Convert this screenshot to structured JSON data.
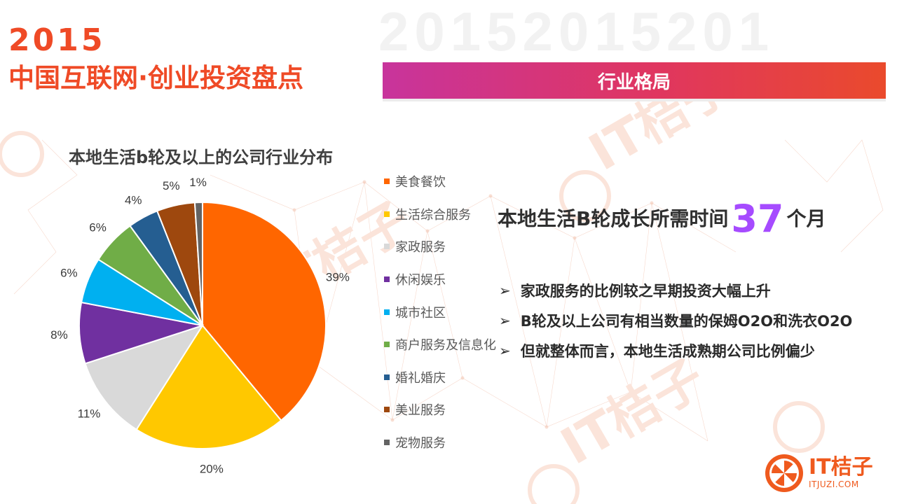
{
  "header": {
    "year": "2015",
    "title": "中国互联网·创业投资盘点",
    "section": "行业格局"
  },
  "chart_data": {
    "type": "pie",
    "title": "本地生活b轮及以上的公司行业分布",
    "categories": [
      "美食餐饮",
      "生活综合服务",
      "家政服务",
      "休闲娱乐",
      "城市社区",
      "商户服务及信息化",
      "婚礼婚庆",
      "美业服务",
      "宠物服务"
    ],
    "values": [
      39,
      20,
      11,
      8,
      6,
      6,
      4,
      5,
      1
    ],
    "labels": [
      "39%",
      "20%",
      "11%",
      "8%",
      "6%",
      "6%",
      "4%",
      "5%",
      "1%"
    ],
    "colors": [
      "#ff6600",
      "#ffc800",
      "#d9d9d9",
      "#7030a0",
      "#00b0f0",
      "#70ad47",
      "#255e91",
      "#9e480e",
      "#636363"
    ],
    "legend_position": "right"
  },
  "headline": {
    "lead": "本地生活B轮成长所需时间",
    "number": "37",
    "tail": "个月"
  },
  "bullets": [
    "家政服务的比例较之早期投资大幅上升",
    "B轮及以上公司有相当数量的保姆O2O和洗衣O2O",
    "但就整体而言，本地生活成熟期公司比例偏少"
  ],
  "logo": {
    "name": "IT桔子",
    "url": "ITJUZI.COM"
  },
  "watermark": {
    "text": "20152015201",
    "brand": "IT桔子",
    "url": "ITJUZI.COM"
  }
}
